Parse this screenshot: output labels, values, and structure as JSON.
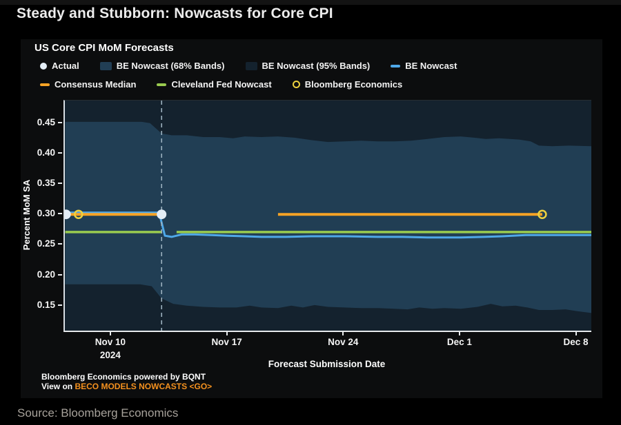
{
  "page": {
    "title": "Steady and Stubborn: Nowcasts for Core CPI",
    "source_line": "Source: Bloomberg Economics"
  },
  "card": {
    "chart_title": "US Core CPI MoM Forecasts",
    "footer_line1": "Bloomberg Economics powered by BQNT",
    "footer_line2_prefix": "View on ",
    "footer_line2_link": "BECO MODELS NOWCASTS <GO>"
  },
  "legend": {
    "rows": [
      [
        {
          "type": "dot",
          "icon_name": "actual-dot-icon",
          "color": "#e3edf6",
          "label": "Actual"
        },
        {
          "type": "swatch",
          "icon_name": "band68-swatch-icon",
          "color": "#213e54",
          "label": "BE Nowcast (68% Bands)"
        },
        {
          "type": "swatch",
          "icon_name": "band95-swatch-icon",
          "color": "#14222e",
          "label": "BE Nowcast (95% Bands)"
        },
        {
          "type": "dash",
          "icon_name": "be-nowcast-line-icon",
          "color": "#4fa8e8",
          "label": "BE Nowcast"
        }
      ],
      [
        {
          "type": "dash",
          "icon_name": "consensus-median-line-icon",
          "color": "#f8a325",
          "label": "Consensus Median"
        },
        {
          "type": "dash",
          "icon_name": "cleveland-fed-line-icon",
          "color": "#9acb4f",
          "label": "Cleveland Fed Nowcast"
        },
        {
          "type": "ring",
          "icon_name": "bloomberg-economics-ring-icon",
          "color": "#edd23f",
          "label": "Bloomberg Economics"
        }
      ]
    ]
  },
  "chart_data": {
    "type": "line",
    "title": "US Core CPI MoM Forecasts",
    "xlabel": "Forecast Submission Date",
    "ylabel": "Percent MoM SA",
    "x_encoding": "day index of Nov 2024 (10 = Nov 10, 31 = Dec 1, 38 = Dec 8)",
    "xlim": [
      7.18,
      38.85
    ],
    "ylim": [
      0.109,
      0.487
    ],
    "x_ticks": [
      {
        "x": 10,
        "label": "Nov 10",
        "sublabel": "2024"
      },
      {
        "x": 17,
        "label": "Nov 17"
      },
      {
        "x": 24,
        "label": "Nov 24"
      },
      {
        "x": 31,
        "label": "Dec 1"
      },
      {
        "x": 38,
        "label": "Dec 8"
      }
    ],
    "y_ticks": [
      0.15,
      0.2,
      0.25,
      0.3,
      0.35,
      0.4,
      0.45
    ],
    "grid": false,
    "event_line": {
      "x": 13,
      "color": "#9cb1bf",
      "style": "dashed"
    },
    "band_95": {
      "label": "BE Nowcast (95% Bands)",
      "color": "#14222e",
      "note": "extends beyond visible y-range; clipped at plot top and bottom across full width",
      "upper": [
        [
          7.18,
          0.487
        ],
        [
          38.85,
          0.487
        ]
      ],
      "lower": [
        [
          7.18,
          0.109
        ],
        [
          38.85,
          0.109
        ]
      ]
    },
    "band_68": {
      "label": "BE Nowcast (68% Bands)",
      "color": "#213e54",
      "upper": [
        [
          7.2,
          0.452
        ],
        [
          11.8,
          0.452
        ],
        [
          12.3,
          0.45
        ],
        [
          13,
          0.433
        ],
        [
          13.6,
          0.43
        ],
        [
          14.5,
          0.43
        ],
        [
          15.5,
          0.427
        ],
        [
          16.5,
          0.427
        ],
        [
          17.3,
          0.425
        ],
        [
          18,
          0.428
        ],
        [
          19,
          0.427
        ],
        [
          20,
          0.428
        ],
        [
          21,
          0.426
        ],
        [
          22,
          0.422
        ],
        [
          23,
          0.419
        ],
        [
          24,
          0.42
        ],
        [
          25,
          0.421
        ],
        [
          26,
          0.42
        ],
        [
          27,
          0.42
        ],
        [
          28,
          0.421
        ],
        [
          29,
          0.424
        ],
        [
          30,
          0.427
        ],
        [
          31,
          0.428
        ],
        [
          31.8,
          0.426
        ],
        [
          32.5,
          0.424
        ],
        [
          33.3,
          0.425
        ],
        [
          34.5,
          0.423
        ],
        [
          35.2,
          0.42
        ],
        [
          35.7,
          0.413
        ],
        [
          36.5,
          0.412
        ],
        [
          37.5,
          0.413
        ],
        [
          38.85,
          0.412
        ]
      ],
      "lower": [
        [
          7.2,
          0.185
        ],
        [
          11.7,
          0.185
        ],
        [
          12.4,
          0.182
        ],
        [
          13,
          0.162
        ],
        [
          13.7,
          0.153
        ],
        [
          14.5,
          0.15
        ],
        [
          15.5,
          0.148
        ],
        [
          16.5,
          0.147
        ],
        [
          17.5,
          0.147
        ],
        [
          18.3,
          0.15
        ],
        [
          19,
          0.147
        ],
        [
          20,
          0.146
        ],
        [
          20.8,
          0.15
        ],
        [
          21.5,
          0.147
        ],
        [
          22.2,
          0.151
        ],
        [
          23,
          0.148
        ],
        [
          24,
          0.147
        ],
        [
          25,
          0.146
        ],
        [
          26,
          0.146
        ],
        [
          27,
          0.145
        ],
        [
          27.8,
          0.144
        ],
        [
          28.5,
          0.147
        ],
        [
          29.3,
          0.145
        ],
        [
          30,
          0.146
        ],
        [
          31,
          0.145
        ],
        [
          32,
          0.148
        ],
        [
          32.8,
          0.153
        ],
        [
          33.5,
          0.149
        ],
        [
          34.3,
          0.15
        ],
        [
          35,
          0.147
        ],
        [
          35.7,
          0.143
        ],
        [
          36.5,
          0.143
        ],
        [
          37.3,
          0.144
        ],
        [
          38,
          0.141
        ],
        [
          38.85,
          0.138
        ]
      ]
    },
    "series": [
      {
        "name": "BE Nowcast",
        "color": "#4fa8e8",
        "width": 3,
        "segments": [
          [
            [
              7.2,
              0.303
            ],
            [
              12.85,
              0.303
            ],
            [
              13.2,
              0.265
            ],
            [
              13.6,
              0.263
            ],
            [
              14.2,
              0.267
            ],
            [
              15,
              0.267
            ],
            [
              16,
              0.266
            ],
            [
              17,
              0.265
            ],
            [
              18,
              0.264
            ],
            [
              19,
              0.263
            ],
            [
              20.5,
              0.263
            ],
            [
              22,
              0.264
            ],
            [
              24,
              0.264
            ],
            [
              26,
              0.263
            ],
            [
              27.5,
              0.263
            ],
            [
              29,
              0.262
            ],
            [
              31,
              0.262
            ],
            [
              32.4,
              0.263
            ],
            [
              33.5,
              0.264
            ],
            [
              34.9,
              0.266
            ],
            [
              38.85,
              0.266
            ]
          ]
        ]
      },
      {
        "name": "Cleveland Fed Nowcast",
        "color": "#9acb4f",
        "width": 3.5,
        "segments": [
          [
            [
              7.2,
              0.271
            ],
            [
              13,
              0.271
            ]
          ],
          [
            [
              13.9,
              0.271
            ],
            [
              38.85,
              0.271
            ]
          ]
        ]
      },
      {
        "name": "Consensus Median",
        "color": "#f8a325",
        "width": 4,
        "segments": [
          [
            [
              7.2,
              0.3
            ],
            [
              13,
              0.3
            ]
          ],
          [
            [
              20,
              0.3
            ],
            [
              35.9,
              0.3
            ]
          ]
        ]
      }
    ],
    "markers": [
      {
        "name": "Actual",
        "shape": "dot",
        "color": "#e3edf6",
        "r": 7,
        "points": [
          [
            7.25,
            0.3
          ],
          [
            13,
            0.3
          ]
        ]
      },
      {
        "name": "Bloomberg Economics",
        "shape": "ring",
        "color": "#edd23f",
        "r": 5.5,
        "points": [
          [
            8.0,
            0.3
          ],
          [
            35.9,
            0.3
          ]
        ]
      }
    ]
  }
}
